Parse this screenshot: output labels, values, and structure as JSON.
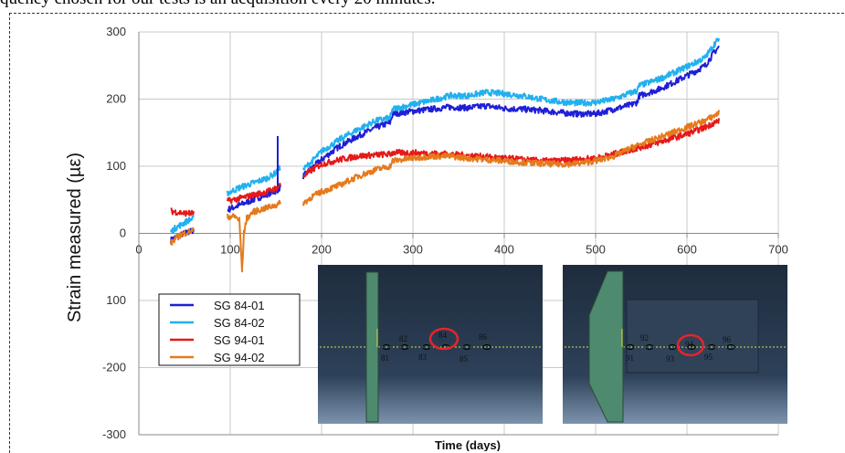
{
  "caption": "quency chosen for our tests is an acquisition every 20 minutes.",
  "chart_data": {
    "type": "line",
    "title": "",
    "xlabel": "Time (days)",
    "ylabel": "Strain measured (µε)",
    "xlim": [
      0,
      700
    ],
    "ylim": [
      -300,
      300
    ],
    "xticks": [
      0,
      100,
      200,
      300,
      400,
      500,
      600,
      700
    ],
    "yticks": [
      300,
      200,
      100,
      0,
      100,
      -200,
      -300
    ],
    "grid": true,
    "legend_position": "bottom-left",
    "series": [
      {
        "name": "SG 84-01",
        "color": "#1f1fd6",
        "x": [
          35,
          40,
          45,
          50,
          55,
          60,
          97,
          110,
          125,
          140,
          150,
          155,
          180,
          190,
          200,
          220,
          240,
          260,
          275,
          278,
          300,
          320,
          340,
          360,
          380,
          400,
          420,
          440,
          460,
          480,
          500,
          520,
          540,
          545,
          548,
          570,
          590,
          610,
          620,
          630,
          635
        ],
        "y": [
          -10,
          -6,
          -3,
          0,
          2,
          5,
          35,
          42,
          50,
          58,
          63,
          68,
          85,
          98,
          110,
          130,
          145,
          158,
          165,
          178,
          182,
          185,
          188,
          187,
          190,
          186,
          185,
          183,
          180,
          178,
          178,
          185,
          192,
          195,
          205,
          215,
          228,
          242,
          250,
          270,
          278
        ]
      },
      {
        "name": "SG 84-02",
        "color": "#22b0ee",
        "x": [
          35,
          40,
          45,
          50,
          55,
          60,
          97,
          110,
          125,
          140,
          150,
          155,
          180,
          190,
          200,
          220,
          240,
          260,
          275,
          278,
          300,
          320,
          340,
          360,
          380,
          400,
          420,
          440,
          460,
          480,
          500,
          520,
          540,
          545,
          548,
          570,
          590,
          610,
          620,
          630,
          635
        ],
        "y": [
          2,
          8,
          12,
          16,
          20,
          22,
          60,
          68,
          75,
          82,
          90,
          98,
          95,
          108,
          122,
          140,
          155,
          168,
          172,
          185,
          192,
          198,
          205,
          205,
          210,
          208,
          205,
          200,
          196,
          194,
          195,
          200,
          210,
          212,
          220,
          230,
          242,
          255,
          262,
          282,
          290
        ]
      },
      {
        "name": "SG 94-01",
        "color": "#e51a1a",
        "x": [
          35,
          40,
          45,
          50,
          55,
          60,
          97,
          110,
          125,
          140,
          150,
          155,
          180,
          190,
          200,
          220,
          240,
          260,
          275,
          278,
          300,
          320,
          340,
          360,
          380,
          400,
          420,
          440,
          460,
          480,
          500,
          520,
          540,
          560,
          580,
          600,
          620,
          630,
          635
        ],
        "y": [
          33,
          32,
          31,
          30,
          30,
          30,
          48,
          52,
          57,
          62,
          67,
          72,
          85,
          95,
          103,
          110,
          115,
          117,
          118,
          120,
          120,
          119,
          118,
          116,
          114,
          112,
          110,
          108,
          108,
          110,
          112,
          118,
          125,
          132,
          140,
          148,
          158,
          165,
          168
        ]
      },
      {
        "name": "SG 94-02",
        "color": "#e57a1c",
        "x": [
          35,
          40,
          45,
          50,
          55,
          60,
          97,
          105,
          110,
          113,
          115,
          118,
          125,
          140,
          150,
          155,
          180,
          190,
          200,
          220,
          240,
          260,
          275,
          278,
          300,
          320,
          340,
          360,
          380,
          400,
          420,
          440,
          460,
          480,
          500,
          520,
          540,
          560,
          580,
          600,
          620,
          630,
          635
        ],
        "y": [
          -15,
          -8,
          -3,
          0,
          3,
          5,
          25,
          25,
          20,
          -55,
          0,
          22,
          32,
          38,
          42,
          45,
          45,
          55,
          62,
          72,
          85,
          95,
          100,
          108,
          112,
          115,
          115,
          112,
          110,
          108,
          106,
          104,
          103,
          104,
          108,
          115,
          128,
          138,
          148,
          158,
          168,
          175,
          180
        ]
      }
    ]
  },
  "insets": [
    {
      "labels_top": [
        "82",
        "84",
        "86"
      ],
      "labels_bottom": [
        "81",
        "83",
        "85"
      ]
    },
    {
      "labels_top": [
        "92",
        "94",
        "96"
      ],
      "labels_bottom": [
        "91",
        "93",
        "95"
      ]
    }
  ],
  "colors": {
    "background": "#ffffff",
    "grid": "#c8c8c8",
    "inset_bg": "#243447",
    "beam": "#4e8a6e",
    "highlight": "#e8232a"
  }
}
